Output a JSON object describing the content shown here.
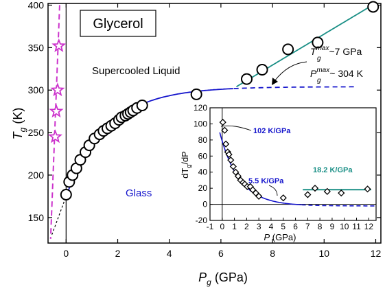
{
  "chart_data": [
    {
      "type": "scatter",
      "title": "Glycerol",
      "xlabel": {
        "main": "P",
        "sub": "g",
        "unit": " (GPa)"
      },
      "ylabel": {
        "main": "T",
        "sub": "g",
        "unit": " (K)"
      },
      "xlim": [
        -0.7,
        12.2
      ],
      "ylim": [
        120,
        402
      ],
      "xticks": [
        0,
        2,
        4,
        6,
        8,
        10,
        12
      ],
      "yticks": [
        150,
        200,
        250,
        300,
        350,
        400
      ],
      "colors": {
        "fit": "#1515cc",
        "linear": "#1a8f86",
        "stars": "#cc33cc",
        "dashed_black": "#000000"
      },
      "series": [
        {
          "marker": "circle",
          "points": [
            [
              0.0,
              177
            ],
            [
              0.12,
              192
            ],
            [
              0.25,
              200
            ],
            [
              0.4,
              208
            ],
            [
              0.55,
              218
            ],
            [
              0.75,
              227
            ],
            [
              0.9,
              235
            ],
            [
              1.1,
              243
            ],
            [
              1.3,
              248
            ],
            [
              1.45,
              252
            ],
            [
              1.6,
              255
            ],
            [
              1.75,
              258
            ],
            [
              1.9,
              261
            ],
            [
              2.05,
              265
            ],
            [
              2.15,
              268
            ],
            [
              2.3,
              270
            ],
            [
              2.4,
              272
            ],
            [
              2.5,
              274
            ],
            [
              2.6,
              276
            ],
            [
              2.75,
              279
            ],
            [
              2.95,
              282
            ],
            [
              5.05,
              295
            ],
            [
              7.0,
              313
            ],
            [
              7.6,
              324
            ],
            [
              8.6,
              348
            ],
            [
              9.75,
              356
            ],
            [
              11.9,
              398
            ]
          ]
        },
        {
          "marker": "star",
          "points": [
            [
              -0.42,
              245
            ],
            [
              -0.38,
              275
            ],
            [
              -0.33,
              300
            ],
            [
              -0.28,
              352
            ]
          ]
        }
      ],
      "annotations": [
        {
          "text": "Supercooled Liquid",
          "color": "#000000"
        },
        {
          "text": "Glass",
          "color": "#1515cc"
        },
        {
          "text": "T",
          "sup": "max",
          "sub": "g",
          "tail": "~7 GPa"
        },
        {
          "text": "P",
          "sup": "max",
          "sub": "g",
          "tail": "~ 304 K"
        }
      ]
    },
    {
      "type": "scatter",
      "xlabel": {
        "main": "P",
        "unit": " (GPa)"
      },
      "ylabel": {
        "main": "dT",
        "sub": "g",
        "tail": "/dP"
      },
      "xlim": [
        -1,
        12.6
      ],
      "ylim": [
        -20,
        120
      ],
      "xticks": [
        -1,
        0,
        1,
        2,
        3,
        4,
        5,
        6,
        7,
        8,
        9,
        10,
        11,
        12
      ],
      "yticks": [
        -20,
        0,
        20,
        40,
        60,
        80,
        100,
        120
      ],
      "series": [
        {
          "marker": "diamond",
          "points": [
            [
              0.05,
              102
            ],
            [
              0.2,
              92
            ],
            [
              0.3,
              75
            ],
            [
              0.45,
              65
            ],
            [
              0.55,
              62
            ],
            [
              0.7,
              55
            ],
            [
              0.9,
              47
            ],
            [
              1.1,
              40
            ],
            [
              1.3,
              35
            ],
            [
              1.5,
              30
            ],
            [
              1.7,
              27
            ],
            [
              1.85,
              25
            ],
            [
              2.05,
              22
            ],
            [
              2.3,
              22
            ],
            [
              2.5,
              18
            ],
            [
              2.75,
              14
            ],
            [
              3.0,
              10
            ],
            [
              5.0,
              8
            ],
            [
              7.0,
              12
            ],
            [
              7.6,
              20
            ],
            [
              8.6,
              16
            ],
            [
              9.75,
              14
            ],
            [
              11.9,
              19
            ]
          ]
        }
      ],
      "annotations": [
        {
          "text": "102 K/GPa",
          "color": "#1515cc"
        },
        {
          "text": "5.5 K/GPa",
          "color": "#1515cc"
        },
        {
          "text": "18.2 K/GPa",
          "color": "#1a8f86"
        }
      ]
    }
  ]
}
